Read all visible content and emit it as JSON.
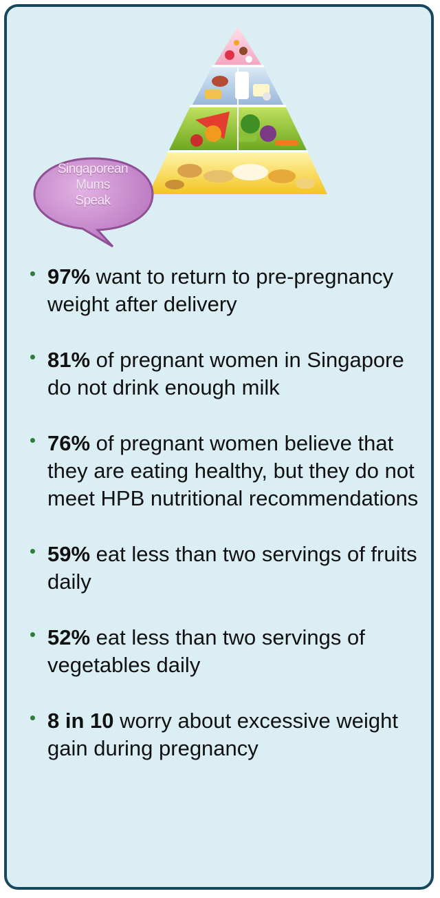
{
  "bubble": {
    "line1": "Singaporean",
    "line2": "Mums",
    "line3": "Speak"
  },
  "facts": [
    {
      "stat": "97%",
      "text": " want to return to pre-pregnancy weight after delivery"
    },
    {
      "stat": "81%",
      "text": " of pregnant women in Singapore do not drink enough milk"
    },
    {
      "stat": "76%",
      "text": " of pregnant women believe that they are eating healthy, but they do not meet HPB nutritional recommendations"
    },
    {
      "stat": "59%",
      "text": " eat less than two servings of fruits daily"
    },
    {
      "stat": "52%",
      "text": " eat less than two servings of vegetables daily"
    },
    {
      "stat": "8 in 10",
      "text": " worry about excessive weight gain during pregnancy"
    }
  ],
  "colors": {
    "panel_bg": "#daeef4",
    "panel_border": "#17475d",
    "bullet": "#2e7d3a",
    "bubble": "#c58ac9"
  },
  "icons": {
    "pyramid": "food-pyramid-icon",
    "bubble": "speech-bubble-icon"
  }
}
